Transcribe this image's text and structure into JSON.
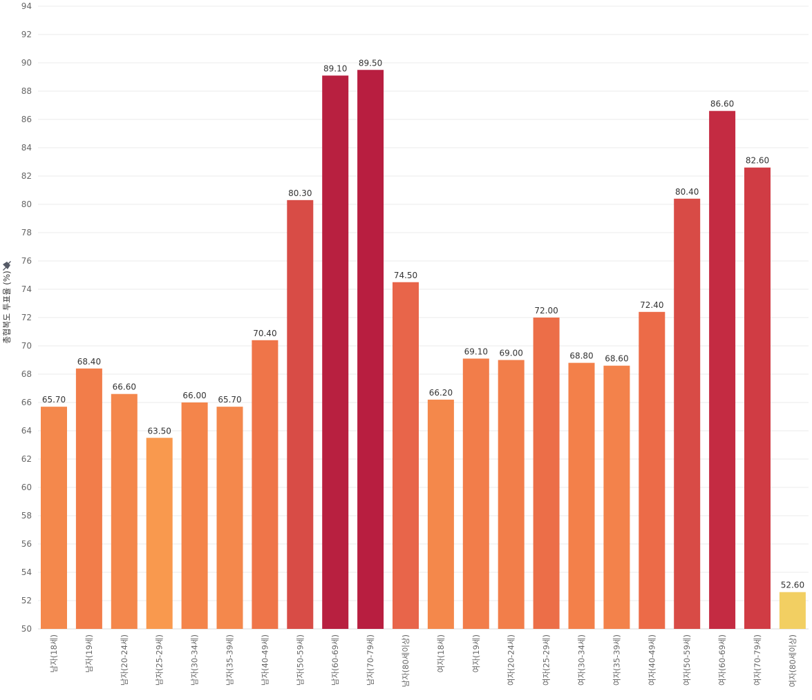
{
  "chart_data": {
    "type": "bar",
    "title": "",
    "xlabel": "",
    "ylabel": "총협복도 투표율 (%)",
    "ylim": [
      50,
      94
    ],
    "yticks": [
      50,
      52,
      54,
      56,
      58,
      60,
      62,
      64,
      66,
      68,
      70,
      72,
      74,
      76,
      78,
      80,
      82,
      84,
      86,
      88,
      90,
      92,
      94
    ],
    "grid": true,
    "categories": [
      "남자(18세)",
      "남자(19세)",
      "남자(20-24세)",
      "남자(25-29세)",
      "남자(30-34세)",
      "남자(35-39세)",
      "남자(40-49세)",
      "남자(50-59세)",
      "남자(60-69세)",
      "남자(70-79세)",
      "남자(80세이상)",
      "여자(18세)",
      "여자(19세)",
      "여자(20-24세)",
      "여자(25-29세)",
      "여자(30-34세)",
      "여자(35-39세)",
      "여자(40-49세)",
      "여자(50-59세)",
      "여자(60-69세)",
      "여자(70-79세)",
      "여자(80세이상)"
    ],
    "values": [
      65.7,
      68.4,
      66.6,
      63.5,
      66.0,
      65.7,
      70.4,
      80.3,
      89.1,
      89.5,
      74.5,
      66.2,
      69.1,
      69.0,
      72.0,
      68.8,
      68.6,
      72.4,
      80.4,
      86.6,
      82.6,
      52.6
    ],
    "value_labels": [
      "65.70",
      "68.40",
      "66.60",
      "63.50",
      "66.00",
      "65.70",
      "70.40",
      "80.30",
      "89.10",
      "89.50",
      "74.50",
      "66.20",
      "69.10",
      "69.00",
      "72.00",
      "68.80",
      "68.60",
      "72.40",
      "80.40",
      "86.60",
      "82.60",
      "52.60"
    ],
    "colors": [
      "#f4884c",
      "#f27d4a",
      "#f4874c",
      "#f9994e",
      "#f4854b",
      "#f4884c",
      "#ef7549",
      "#d84c46",
      "#b82040",
      "#b81e40",
      "#e8654a",
      "#f4884b",
      "#f27d4a",
      "#f27e4a",
      "#ec6e48",
      "#f3804a",
      "#f3824b",
      "#ec6b48",
      "#d84b46",
      "#c42b42",
      "#d03c44",
      "#f2cf62"
    ],
    "colors_meta": {
      "axis_text": "#666666",
      "grid": "#ebebeb",
      "value_label": "#333333"
    }
  }
}
